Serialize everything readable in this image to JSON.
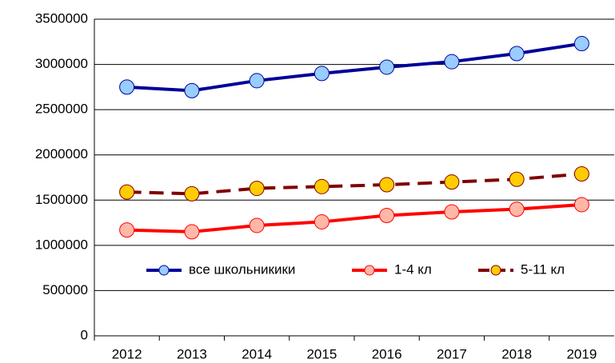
{
  "chart_data": {
    "type": "line",
    "categories": [
      "2012",
      "2013",
      "2014",
      "2015",
      "2016",
      "2017",
      "2018",
      "2019"
    ],
    "series": [
      {
        "name": "все школьникики",
        "color": "#000099",
        "marker_color": "#99ccff",
        "dash": false,
        "values": [
          2750000,
          2710000,
          2820000,
          2900000,
          2970000,
          3030000,
          3120000,
          3230000
        ]
      },
      {
        "name": "1-4 кл",
        "color": "#ff0000",
        "marker_color": "#ffb8a8",
        "dash": false,
        "values": [
          1170000,
          1150000,
          1220000,
          1260000,
          1330000,
          1370000,
          1400000,
          1450000
        ]
      },
      {
        "name": "5-11 кл",
        "color": "#800000",
        "marker_color": "#ffcc00",
        "dash": true,
        "values": [
          1590000,
          1570000,
          1630000,
          1650000,
          1670000,
          1700000,
          1730000,
          1790000
        ]
      }
    ],
    "ylim": [
      0,
      3500000
    ],
    "yticks": [
      0,
      500000,
      1000000,
      1500000,
      2000000,
      2500000,
      3000000,
      3500000
    ],
    "grid": true,
    "legend": "center"
  }
}
